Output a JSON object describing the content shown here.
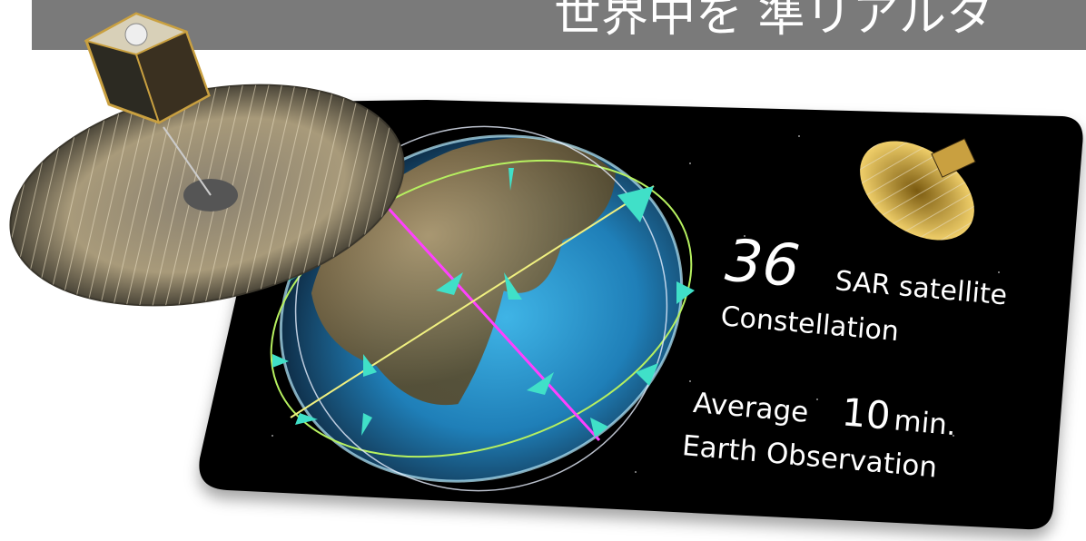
{
  "banner": {
    "text": "世界中を 準リアルタ"
  },
  "card": {
    "count": "36",
    "count_label": "SAR satellite",
    "line2": "Constellation",
    "avg_prefix": "Average",
    "avg_value": "10",
    "avg_unit": "min.",
    "line4": "Earth Observation"
  }
}
